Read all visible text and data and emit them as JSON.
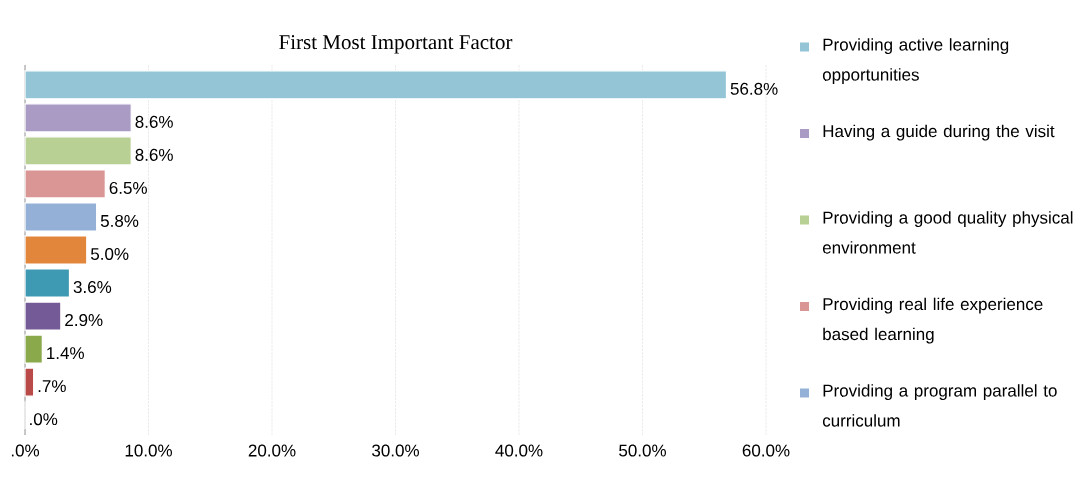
{
  "chart_data": {
    "type": "bar",
    "orientation": "horizontal",
    "title": "First Most Important Factor",
    "categories": [
      null,
      null,
      null,
      null,
      null,
      null,
      null,
      null,
      null,
      null,
      null
    ],
    "series": [
      {
        "name": "Providing active learning opportunities",
        "color": "#93c5d7",
        "values": [
          56.8,
          null,
          null,
          null,
          null,
          null,
          null,
          null,
          null,
          null,
          null
        ],
        "value_labels": [
          "56.8%",
          null,
          null,
          null,
          null,
          null,
          null,
          null,
          null,
          null,
          null
        ]
      },
      {
        "name": "Having a guide during the visit",
        "color": "#a99bc4",
        "values": [
          null,
          8.6,
          null,
          null,
          null,
          null,
          null,
          null,
          null,
          null,
          null
        ],
        "value_labels": [
          null,
          "8.6%",
          null,
          null,
          null,
          null,
          null,
          null,
          null,
          null,
          null
        ]
      },
      {
        "name": "Providing a good quality physical environment",
        "color": "#b9d095",
        "values": [
          null,
          null,
          8.6,
          null,
          null,
          null,
          null,
          null,
          null,
          null,
          null
        ],
        "value_labels": [
          null,
          null,
          "8.6%",
          null,
          null,
          null,
          null,
          null,
          null,
          null,
          null
        ]
      },
      {
        "name": "Providing real life experience based learning",
        "color": "#d99694",
        "values": [
          null,
          null,
          null,
          6.5,
          null,
          null,
          null,
          null,
          null,
          null,
          null
        ],
        "value_labels": [
          null,
          null,
          null,
          "6.5%",
          null,
          null,
          null,
          null,
          null,
          null,
          null
        ]
      },
      {
        "name": "Providing a program parallel to curriculum",
        "color": "#95b0d6",
        "values": [
          null,
          null,
          null,
          null,
          5.8,
          null,
          null,
          null,
          null,
          null,
          null
        ],
        "value_labels": [
          null,
          null,
          null,
          null,
          "5.8%",
          null,
          null,
          null,
          null,
          null,
          null
        ]
      },
      {
        "color": "#e2863c",
        "values": [
          null,
          null,
          null,
          null,
          null,
          5.0,
          null,
          null,
          null,
          null,
          null
        ],
        "value_labels": [
          null,
          null,
          null,
          null,
          null,
          "5.0%",
          null,
          null,
          null,
          null,
          null
        ]
      },
      {
        "color": "#3e9ab3",
        "values": [
          null,
          null,
          null,
          null,
          null,
          null,
          3.6,
          null,
          null,
          null,
          null
        ],
        "value_labels": [
          null,
          null,
          null,
          null,
          null,
          null,
          "3.6%",
          null,
          null,
          null,
          null
        ]
      },
      {
        "color": "#745b98",
        "values": [
          null,
          null,
          null,
          null,
          null,
          null,
          null,
          2.9,
          null,
          null,
          null
        ],
        "value_labels": [
          null,
          null,
          null,
          null,
          null,
          null,
          null,
          "2.9%",
          null,
          null,
          null
        ]
      },
      {
        "color": "#8aa94b",
        "values": [
          null,
          null,
          null,
          null,
          null,
          null,
          null,
          null,
          1.4,
          null,
          null
        ],
        "value_labels": [
          null,
          null,
          null,
          null,
          null,
          null,
          null,
          null,
          "1.4%",
          null,
          null
        ]
      },
      {
        "color": "#b94a48",
        "values": [
          null,
          null,
          null,
          null,
          null,
          null,
          null,
          null,
          null,
          0.7,
          null
        ],
        "value_labels": [
          null,
          null,
          null,
          null,
          null,
          null,
          null,
          null,
          null,
          ".7%",
          null
        ]
      },
      {
        "color": "#4a7ebb",
        "values": [
          null,
          null,
          null,
          null,
          null,
          null,
          null,
          null,
          null,
          null,
          0.0
        ],
        "value_labels": [
          null,
          null,
          null,
          null,
          null,
          null,
          null,
          null,
          null,
          null,
          ".0%"
        ]
      }
    ],
    "xlim": [
      0,
      60
    ],
    "xticks": [
      {
        "value": 0,
        "label": ".0%"
      },
      {
        "value": 10,
        "label": "10.0%"
      },
      {
        "value": 20,
        "label": "20.0%"
      },
      {
        "value": 30,
        "label": "30.0%"
      },
      {
        "value": 40,
        "label": "40.0%"
      },
      {
        "value": 50,
        "label": "50.0%"
      },
      {
        "value": 60,
        "label": "60.0%"
      }
    ],
    "grid": "x",
    "legend": "right"
  }
}
